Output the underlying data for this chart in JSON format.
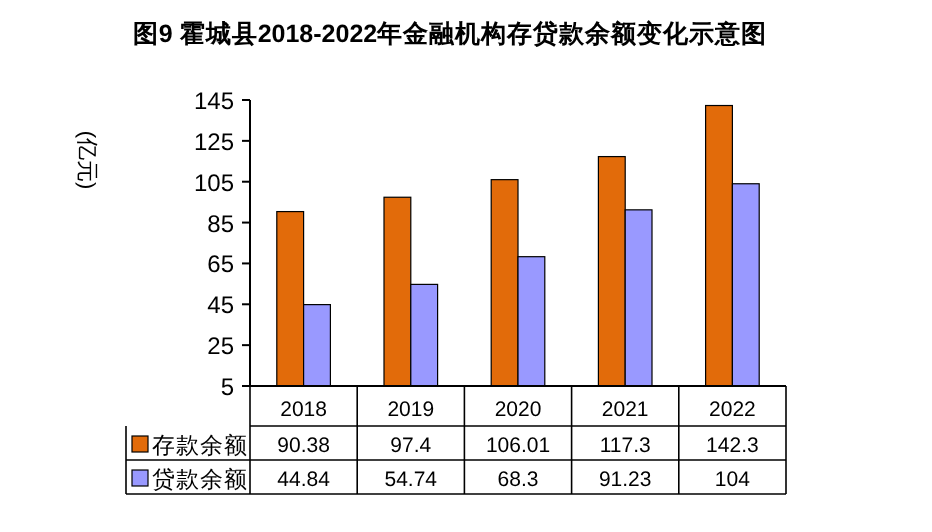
{
  "chart_data": {
    "type": "bar",
    "title": "图9 霍城县2018-2022年金融机构存贷款余额变化示意图",
    "ylabel": "(亿元)",
    "categories": [
      "2018",
      "2019",
      "2020",
      "2021",
      "2022"
    ],
    "series": [
      {
        "name": "存款余额",
        "color": "#e26b0a",
        "values": [
          90.38,
          97.4,
          106.01,
          117.3,
          142.3
        ]
      },
      {
        "name": "贷款余额",
        "color": "#9999ff",
        "values": [
          44.84,
          54.74,
          68.3,
          91.23,
          104
        ]
      }
    ],
    "ylim": [
      5,
      145
    ],
    "yticks": [
      5,
      25,
      45,
      65,
      85,
      105,
      125,
      145
    ],
    "data_labels": true,
    "legend": "bottom",
    "grid": false
  }
}
